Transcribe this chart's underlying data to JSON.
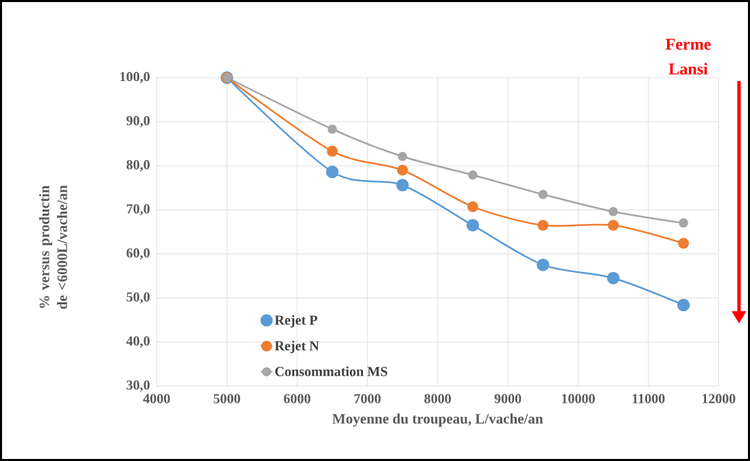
{
  "chart_data": {
    "type": "line",
    "xlabel": "Moyenne du troupeau, L/vache/an",
    "ylabel": "% versus productin de <6000L/vache/an",
    "x": [
      5000,
      6500,
      7500,
      8500,
      9500,
      10500,
      11500
    ],
    "series": [
      {
        "name": "Rejet P",
        "color": "#5b9bd5",
        "values": [
          100,
          78.6,
          75.6,
          66.5,
          57.5,
          54.5,
          48.4
        ]
      },
      {
        "name": "Rejet N",
        "color": "#ed7d31",
        "values": [
          100,
          83.3,
          79.0,
          70.7,
          66.5,
          66.5,
          62.4
        ]
      },
      {
        "name": "Consommation MS",
        "color": "#a5a5a5",
        "values": [
          100,
          88.3,
          82.1,
          77.9,
          73.5,
          69.6,
          67.0
        ]
      }
    ],
    "xlim": [
      4000,
      12000
    ],
    "xticks": [
      4000,
      5000,
      6000,
      7000,
      8000,
      9000,
      10000,
      11000,
      12000
    ],
    "ylim": [
      30,
      100
    ],
    "yticks": [
      {
        "value": 30,
        "label": "30,0"
      },
      {
        "value": 40,
        "label": "40,0"
      },
      {
        "value": 50,
        "label": "50,0"
      },
      {
        "value": 60,
        "label": "60,0"
      },
      {
        "value": 70,
        "label": "70,0"
      },
      {
        "value": 80,
        "label": "80,0"
      },
      {
        "value": 90,
        "label": "90,0"
      },
      {
        "value": 100,
        "label": "100,0"
      }
    ],
    "grid": true,
    "legend": "bottom left",
    "marker": "circle",
    "annotations": [
      "Ferme Lansi"
    ]
  }
}
